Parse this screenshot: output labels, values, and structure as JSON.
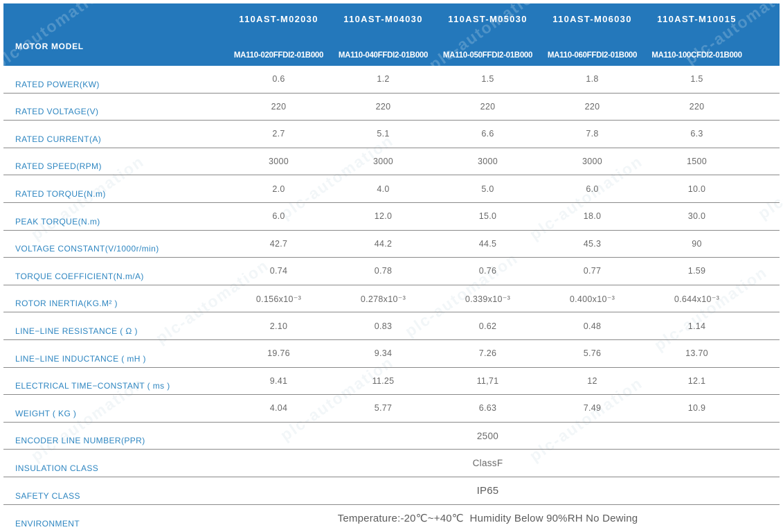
{
  "watermark": {
    "text": "plc-automation"
  },
  "colors": {
    "header_bg": "#2478bb",
    "label_blue": "#2e86c1",
    "value_gray": "#696969",
    "border_gray": "#8a8a8a"
  },
  "header": {
    "row_label": "MOTOR MODEL",
    "columns": [
      {
        "model": "110AST-M02030",
        "part_number": "MA110-020FFDI2-01B000"
      },
      {
        "model": "110AST-M04030",
        "part_number": "MA110-040FFDI2-01B000"
      },
      {
        "model": "110AST-M05030",
        "part_number": "MA110-050FFDI2-01B000"
      },
      {
        "model": "110AST-M06030",
        "part_number": "MA110-060FFDI2-01B000"
      },
      {
        "model": "110AST-M10015",
        "part_number": "MA110-100CFDI2-01B000"
      }
    ]
  },
  "table": {
    "rows": [
      {
        "label": "RATED POWER(KW)",
        "values": [
          "0.6",
          "1.2",
          "1.5",
          "1.8",
          "1.5"
        ]
      },
      {
        "label": "RATED VOLTAGE(V)",
        "values": [
          "220",
          "220",
          "220",
          "220",
          "220"
        ]
      },
      {
        "label": "RATED CURRENT(A)",
        "values": [
          "2.7",
          "5.1",
          "6.6",
          "7.8",
          "6.3"
        ]
      },
      {
        "label": "RATED SPEED(RPM)",
        "values": [
          "3000",
          "3000",
          "3000",
          "3000",
          "1500"
        ]
      },
      {
        "label": "RATED TORQUE(N.m)",
        "values": [
          "2.0",
          "4.0",
          "5.0",
          "6.0",
          "10.0"
        ]
      },
      {
        "label": "PEAK TORQUE(N.m)",
        "values": [
          "6.0",
          "12.0",
          "15.0",
          "18.0",
          "30.0"
        ]
      },
      {
        "label": "VOLTAGE CONSTANT(V/1000r/min)",
        "values": [
          "42.7",
          "44.2",
          "44.5",
          "45.3",
          "90"
        ]
      },
      {
        "label": "TORQUE COEFFICIENT(N.m/A)",
        "values": [
          "0.74",
          "0.78",
          "0.76",
          "0.77",
          "1.59"
        ]
      },
      {
        "label": "ROTOR INERTIA(KG.M² )",
        "values": [
          "0.156x10⁻³",
          "0.278x10⁻³",
          "0.339x10⁻³",
          "0.400x10⁻³",
          "0.644x10⁻³"
        ]
      },
      {
        "label": "LINE−LINE RESISTANCE ( Ω )",
        "values": [
          "2.10",
          "0.83",
          "0.62",
          "0.48",
          "1.14"
        ]
      },
      {
        "label": "LINE−LINE INDUCTANCE ( mH )",
        "values": [
          "19.76",
          "9.34",
          "7.26",
          "5.76",
          "13.70"
        ]
      },
      {
        "label": "ELECTRICAL TIME−CONSTANT ( ms )",
        "values": [
          "9.41",
          "11.25",
          "11,71",
          "12",
          "12.1"
        ]
      },
      {
        "label": "WEIGHT ( KG )",
        "values": [
          "4.04",
          "5.77",
          "6.63",
          "7.49",
          "10.9"
        ]
      },
      {
        "label": "ENCODER LINE NUMBER(PPR)",
        "span_value": "2500"
      },
      {
        "label": "INSULATION CLASS",
        "span_value": "ClassF"
      },
      {
        "label": "SAFETY CLASS",
        "span_value": "IP65",
        "large": true
      },
      {
        "label": "ENVIRONMENT",
        "span_value": "Temperature:-20℃~+40℃  Humidity Below 90%RH No Dewing",
        "large": true
      }
    ]
  }
}
